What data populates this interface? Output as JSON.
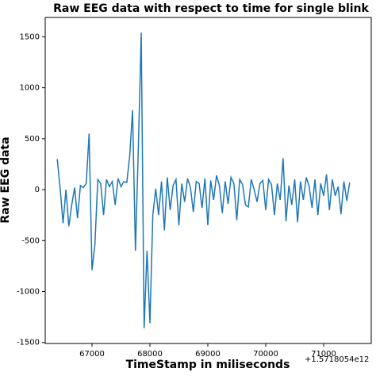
{
  "chart_data": {
    "type": "line",
    "title": "Raw EEG data with respect to time for single blink",
    "x_label": "TimeStamp in miliseconds",
    "y_label": "Raw EEG data",
    "x_offset_text": "+1.5718054e12",
    "x": [
      66400,
      66450,
      66500,
      66550,
      66600,
      66650,
      66700,
      66750,
      66800,
      66850,
      66900,
      66950,
      67000,
      67050,
      67100,
      67150,
      67200,
      67250,
      67300,
      67350,
      67400,
      67450,
      67500,
      67550,
      67600,
      67650,
      67700,
      67750,
      67800,
      67850,
      67900,
      67950,
      68000,
      68050,
      68100,
      68150,
      68200,
      68250,
      68300,
      68350,
      68400,
      68450,
      68500,
      68550,
      68600,
      68650,
      68700,
      68750,
      68800,
      68850,
      68900,
      68950,
      69000,
      69050,
      69100,
      69150,
      69200,
      69250,
      69300,
      69350,
      69400,
      69450,
      69500,
      69550,
      69600,
      69650,
      69700,
      69750,
      69800,
      69850,
      69900,
      69950,
      70000,
      70050,
      70100,
      70150,
      70200,
      70250,
      70300,
      70350,
      70400,
      70450,
      70500,
      70550,
      70600,
      70650,
      70700,
      70750,
      70800,
      70850,
      70900,
      70950,
      71000,
      71050,
      71100,
      71150,
      71200,
      71250,
      71300,
      71350,
      71400,
      71450
    ],
    "series": [
      {
        "name": "Raw EEG",
        "color": "#1f77b4",
        "values": [
          300,
          10,
          -330,
          0,
          -360,
          -150,
          20,
          -280,
          40,
          20,
          60,
          550,
          -790,
          -540,
          100,
          60,
          -250,
          100,
          30,
          80,
          -150,
          110,
          30,
          80,
          70,
          320,
          780,
          -600,
          400,
          1540,
          -1360,
          -600,
          -1310,
          -250,
          10,
          -250,
          80,
          -400,
          120,
          -200,
          40,
          100,
          -350,
          60,
          -120,
          110,
          20,
          -220,
          80,
          60,
          -180,
          110,
          -350,
          90,
          -100,
          140,
          40,
          -230,
          80,
          -140,
          120,
          60,
          -300,
          100,
          50,
          -150,
          -170,
          100,
          0,
          -120,
          60,
          90,
          -200,
          100,
          50,
          -250,
          60,
          -100,
          310,
          -310,
          40,
          -150,
          100,
          -320,
          80,
          -100,
          120,
          30,
          -180,
          100,
          -250,
          60,
          -60,
          150,
          -200,
          100,
          -60,
          30,
          -240,
          80,
          -110,
          70
        ]
      }
    ],
    "xlim": [
      66192,
      71822
    ],
    "ylim": [
      -1510,
      1690
    ],
    "xticks": [
      67000,
      68000,
      69000,
      70000,
      71000
    ],
    "yticks": [
      -1500,
      -1000,
      -500,
      0,
      500,
      1000,
      1500
    ]
  }
}
